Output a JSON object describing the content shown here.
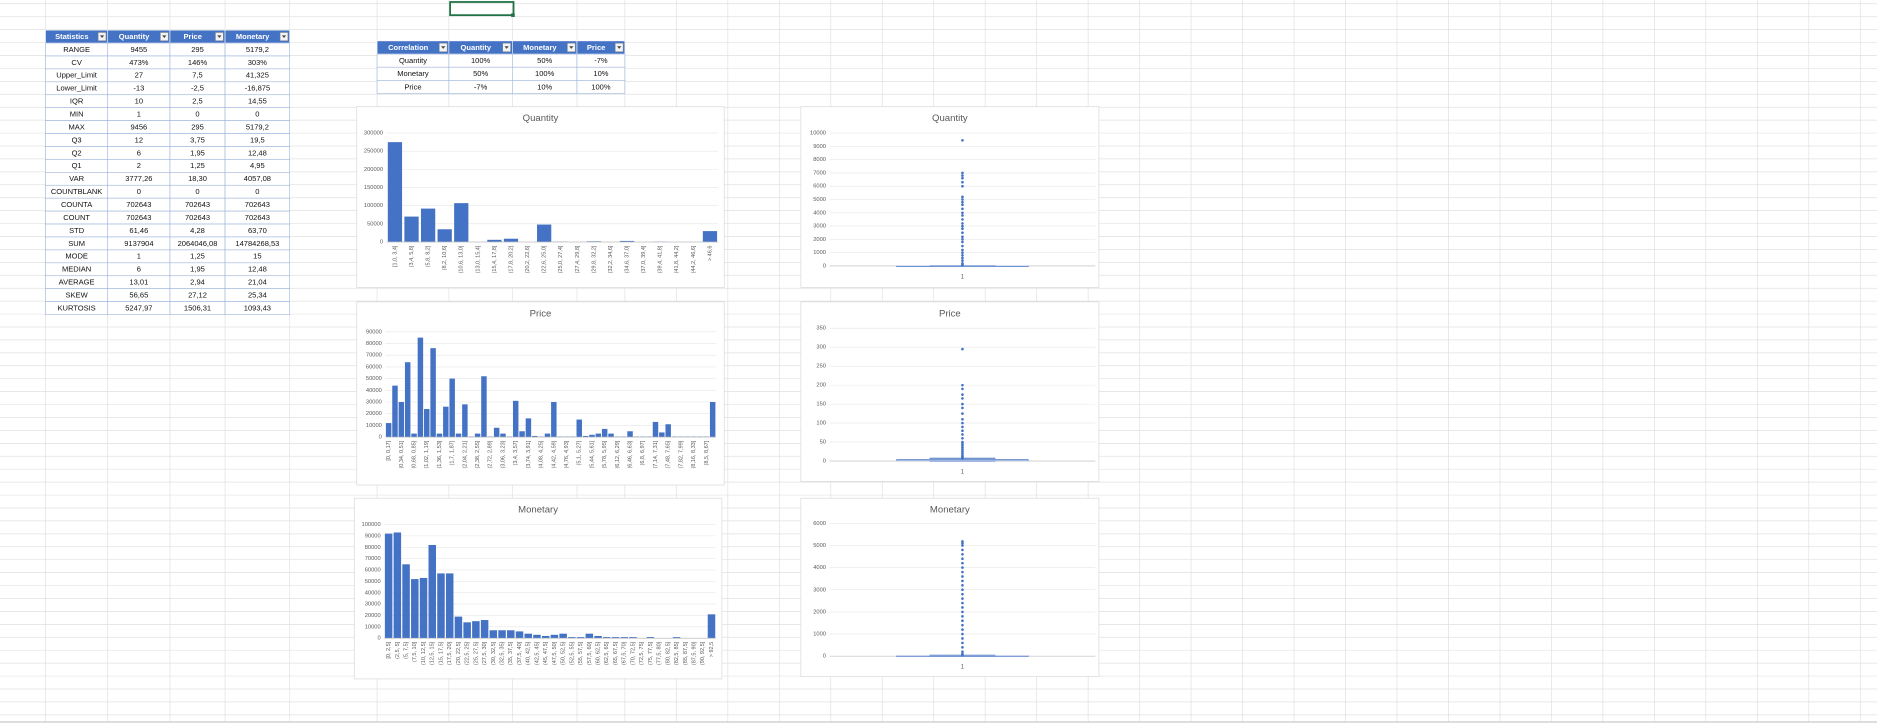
{
  "stats_table": {
    "header": [
      "Statistics",
      "Quantity",
      "Price",
      "Monetary"
    ],
    "rows": [
      [
        "RANGE",
        "9455",
        "295",
        "5179,2"
      ],
      [
        "CV",
        "473%",
        "146%",
        "303%"
      ],
      [
        "Upper_Limit",
        "27",
        "7,5",
        "41,325"
      ],
      [
        "Lower_Limit",
        "-13",
        "-2,5",
        "-16,875"
      ],
      [
        "IQR",
        "10",
        "2,5",
        "14,55"
      ],
      [
        "MIN",
        "1",
        "0",
        "0"
      ],
      [
        "MAX",
        "9456",
        "295",
        "5179,2"
      ],
      [
        "Q3",
        "12",
        "3,75",
        "19,5"
      ],
      [
        "Q2",
        "6",
        "1,95",
        "12,48"
      ],
      [
        "Q1",
        "2",
        "1,25",
        "4,95"
      ],
      [
        "VAR",
        "3777,26",
        "18,30",
        "4057,08"
      ],
      [
        "COUNTBLANK",
        "0",
        "0",
        "0"
      ],
      [
        "COUNTA",
        "702643",
        "702643",
        "702643"
      ],
      [
        "COUNT",
        "702643",
        "702643",
        "702643"
      ],
      [
        "STD",
        "61,46",
        "4,28",
        "63,70"
      ],
      [
        "SUM",
        "9137904",
        "2064046,08",
        "14784268,53"
      ],
      [
        "MODE",
        "1",
        "1,25",
        "15"
      ],
      [
        "MEDIAN",
        "6",
        "1,95",
        "12,48"
      ],
      [
        "AVERAGE",
        "13,01",
        "2,94",
        "21,04"
      ],
      [
        "SKEW",
        "56,65",
        "27,12",
        "25,34"
      ],
      [
        "KURTOSIS",
        "5247,97",
        "1506,31",
        "1093,43"
      ]
    ]
  },
  "correlation_table": {
    "header": [
      "Correlation",
      "Quantity",
      "Monetary",
      "Price"
    ],
    "rows": [
      [
        "Quantity",
        "100%",
        "50%",
        "-7%"
      ],
      [
        "Monetary",
        "50%",
        "100%",
        "10%"
      ],
      [
        "Price",
        "-7%",
        "10%",
        "100%"
      ]
    ]
  },
  "chart_data": [
    {
      "type": "bar",
      "title": "Quantity",
      "color": "#4472c4",
      "grid": true,
      "categories": [
        "[1,0, 3,4]",
        "(3,4, 5,8]",
        "(5,8, 8,2]",
        "(8,2, 10,6]",
        "(10,6, 13,0]",
        "(13,0, 15,4]",
        "(15,4, 17,8]",
        "(17,8, 20,2]",
        "(20,2, 22,6]",
        "(22,6, 25,0]",
        "(25,0, 27,4]",
        "(27,4, 29,8]",
        "(29,8, 32,2]",
        "(32,2, 34,6]",
        "(34,6, 37,0]",
        "(37,0, 39,4]",
        "(39,4, 41,8]",
        "(41,8, 44,2]",
        "(44,2, 46,6]",
        "> 46,6"
      ],
      "values": [
        275000,
        70000,
        92000,
        35000,
        107000,
        0,
        6000,
        9000,
        0,
        48000,
        1000,
        0,
        2000,
        0,
        3000,
        0,
        1000,
        0,
        0,
        30000
      ],
      "ylim": [
        0,
        300000
      ],
      "yticks": [
        0,
        50000,
        100000,
        150000,
        200000,
        250000,
        300000
      ]
    },
    {
      "type": "box",
      "title": "Quantity",
      "color": "#4472c4",
      "grid": true,
      "categories": [
        "1"
      ],
      "box": {
        "min": 1,
        "q1": 2,
        "median": 6,
        "q3": 12,
        "max": 27
      },
      "outliers": [
        9456,
        7000,
        6800,
        6600,
        6300,
        6000,
        5200,
        5000,
        4800,
        4600,
        4300,
        4000,
        3800,
        3500,
        3200,
        3000,
        2800,
        2500,
        2200,
        2000,
        1800,
        1500,
        1200,
        1000,
        800,
        600,
        400,
        200,
        100,
        50
      ],
      "ylim": [
        0,
        10000
      ],
      "yticks": [
        0,
        1000,
        2000,
        3000,
        4000,
        5000,
        6000,
        7000,
        8000,
        9000,
        10000
      ]
    },
    {
      "type": "bar",
      "title": "Price",
      "color": "#4472c4",
      "grid": true,
      "categories": [
        "[0, 0,17]",
        null,
        "(0,34, 0,51]",
        null,
        "(0,68, 0,85]",
        null,
        "(1,02, 1,19]",
        null,
        "(1,36, 1,53]",
        null,
        "(1,7, 1,87]",
        null,
        "(2,04, 2,21]",
        null,
        "(2,38, 2,55]",
        null,
        "(2,72, 2,89]",
        null,
        "(3,06, 3,23]",
        null,
        "(3,4, 3,57]",
        null,
        "(3,74, 3,91]",
        null,
        "(4,08, 4,25]",
        null,
        "(4,42, 4,59]",
        null,
        "(4,76, 4,93]",
        null,
        "(5,1, 5,27]",
        null,
        "(5,44, 5,61]",
        null,
        "(5,78, 5,95]",
        null,
        "(6,12, 6,29]",
        null,
        "(6,46, 6,63]",
        null,
        "(6,8, 6,97]",
        null,
        "(7,14, 7,31]",
        null,
        "(7,48, 7,65]",
        null,
        "(7,82, 7,99]",
        null,
        "(8,16, 8,33]",
        null,
        "(8,5, 8,67]",
        null
      ],
      "values": [
        12000,
        44000,
        30000,
        64000,
        3000,
        85000,
        24000,
        76000,
        3000,
        26000,
        50000,
        3000,
        28000,
        500,
        3000,
        52000,
        500,
        8000,
        3000,
        500,
        31000,
        5000,
        16000,
        1000,
        500,
        3000,
        30000,
        500,
        500,
        500,
        15000,
        1000,
        2000,
        3000,
        7000,
        3000,
        500,
        500,
        5000,
        500,
        500,
        500,
        13000,
        4000,
        11000,
        500,
        500,
        500,
        500,
        500,
        500,
        30000
      ],
      "ylim": [
        0,
        90000
      ],
      "yticks": [
        0,
        10000,
        20000,
        30000,
        40000,
        50000,
        60000,
        70000,
        80000,
        90000
      ]
    },
    {
      "type": "box",
      "title": "Price",
      "color": "#4472c4",
      "grid": true,
      "categories": [
        "1"
      ],
      "box": {
        "min": 0,
        "q1": 1.25,
        "median": 1.95,
        "q3": 3.75,
        "max": 7.5
      },
      "outliers": [
        295,
        200,
        190,
        175,
        165,
        150,
        140,
        125,
        110,
        100,
        90,
        80,
        70,
        60,
        50,
        45,
        40,
        35,
        30,
        25,
        20,
        15,
        12,
        10,
        8
      ],
      "ylim": [
        0,
        350
      ],
      "yticks": [
        0,
        50,
        100,
        150,
        200,
        250,
        300,
        350
      ]
    },
    {
      "type": "bar",
      "title": "Monetary",
      "color": "#4472c4",
      "grid": true,
      "categories": [
        "[0, 2,5]",
        "(2,5, 5]",
        "(5, 7,5]",
        "(7,5, 10]",
        "(10, 12,5]",
        "(12,5, 15]",
        "(15, 17,5]",
        "(17,5, 20]",
        "(20, 22,5]",
        "(22,5, 25]",
        "(25, 27,5]",
        "(27,5, 30]",
        "(30, 32,5]",
        "(32,5, 35]",
        "(35, 37,5]",
        "(37,5, 40]",
        "(40, 42,5]",
        "(42,5, 45]",
        "(45, 47,5]",
        "(47,5, 50]",
        "(50, 52,5]",
        "(52,5, 55]",
        "(55, 57,5]",
        "(57,5, 60]",
        "(60, 62,5]",
        "(62,5, 65]",
        "(65, 67,5]",
        "(67,5, 70]",
        "(70, 72,5]",
        "(72,5, 75]",
        "(75, 77,5]",
        "(77,5, 80]",
        "(80, 82,5]",
        "(82,5, 85]",
        "(85, 87,5]",
        "(87,5, 90]",
        "(90, 92,5]",
        "> 92,5"
      ],
      "values": [
        92000,
        93000,
        65000,
        52000,
        53000,
        82000,
        57000,
        57000,
        19000,
        14000,
        15000,
        16000,
        7000,
        7000,
        7000,
        6000,
        4000,
        3000,
        2000,
        3000,
        4000,
        1000,
        1000,
        4000,
        2000,
        1000,
        1000,
        1000,
        1000,
        0,
        1000,
        0,
        0,
        1000,
        0,
        0,
        0,
        21000
      ],
      "ylim": [
        0,
        100000
      ],
      "yticks": [
        0,
        10000,
        20000,
        30000,
        40000,
        50000,
        60000,
        70000,
        80000,
        90000,
        100000
      ]
    },
    {
      "type": "box",
      "title": "Monetary",
      "color": "#4472c4",
      "grid": true,
      "categories": [
        "1"
      ],
      "box": {
        "min": 0,
        "q1": 4.95,
        "median": 12.48,
        "q3": 19.5,
        "max": 41.325
      },
      "outliers": [
        5179.2,
        5100,
        5000,
        4800,
        4600,
        4400,
        4200,
        4000,
        3800,
        3600,
        3400,
        3200,
        3000,
        2800,
        2600,
        2400,
        2200,
        2000,
        1800,
        1600,
        1400,
        1200,
        1000,
        800,
        600,
        400,
        200,
        100,
        50
      ],
      "ylim": [
        0,
        6000
      ],
      "yticks": [
        0,
        1000,
        2000,
        3000,
        4000,
        5000,
        6000
      ]
    }
  ]
}
